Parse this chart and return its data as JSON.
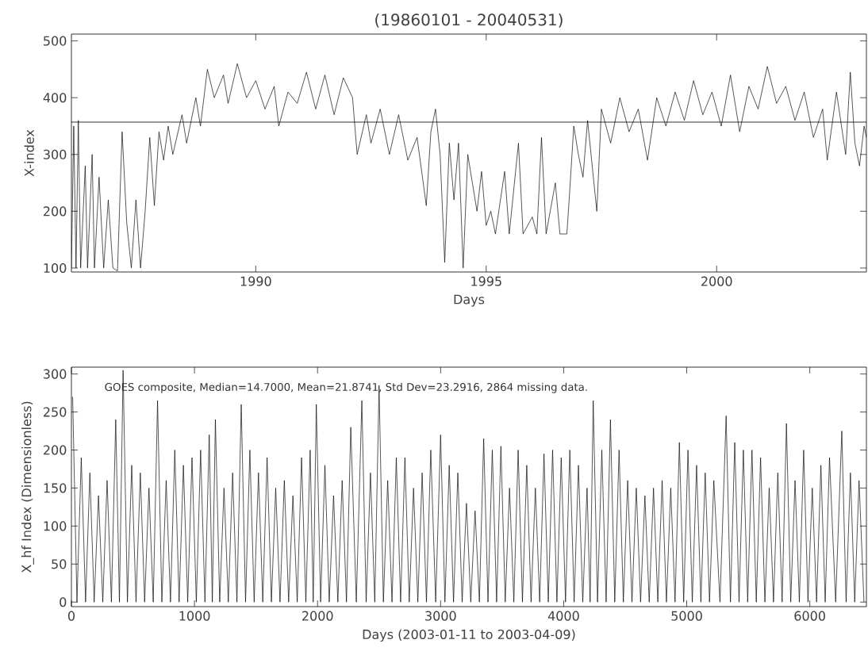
{
  "chart_data": [
    {
      "type": "line",
      "title": "(19860101 - 20040531)",
      "xlabel": "Days",
      "ylabel": "X-index",
      "xlim": [
        1986.0,
        2003.25
      ],
      "ylim": [
        93,
        512
      ],
      "xticks": [
        1990,
        1995,
        2000
      ],
      "yticks": [
        100,
        200,
        300,
        400,
        500
      ],
      "ref_lines": [
        {
          "axis": "y",
          "value": 357,
          "color": "#000000"
        }
      ],
      "series": [
        {
          "color": "#000000",
          "x": [
            1986.0,
            1986.05,
            1986.1,
            1986.15,
            1986.2,
            1986.3,
            1986.35,
            1986.45,
            1986.5,
            1986.6,
            1986.7,
            1986.8,
            1986.9,
            1987.0,
            1987.1,
            1987.2,
            1987.3,
            1987.4,
            1987.5,
            1987.6,
            1987.7,
            1987.8,
            1987.9,
            1988.0,
            1988.1,
            1988.2,
            1988.4,
            1988.5,
            1988.7,
            1988.8,
            1988.95,
            1989.1,
            1989.3,
            1989.4,
            1989.6,
            1989.8,
            1990.0,
            1990.2,
            1990.4,
            1990.5,
            1990.7,
            1990.9,
            1991.1,
            1991.3,
            1991.5,
            1991.7,
            1991.9,
            1992.1,
            1992.2,
            1992.4,
            1992.5,
            1992.7,
            1992.9,
            1993.1,
            1993.3,
            1993.5,
            1993.7,
            1993.8,
            1993.9,
            1994.0,
            1994.1,
            1994.2,
            1994.3,
            1994.4,
            1994.5,
            1994.6,
            1994.8,
            1994.9,
            1995.0,
            1995.1,
            1995.2,
            1995.4,
            1995.5,
            1995.7,
            1995.8,
            1996.0,
            1996.1,
            1996.2,
            1996.3,
            1996.5,
            1996.6,
            1996.75,
            1996.8,
            1996.9,
            1997.0,
            1997.1,
            1997.2,
            1997.4,
            1997.5,
            1997.7,
            1997.9,
            1998.1,
            1998.3,
            1998.5,
            1998.7,
            1998.9,
            1999.1,
            1999.3,
            1999.5,
            1999.7,
            1999.9,
            2000.1,
            2000.3,
            2000.5,
            2000.7,
            2000.9,
            2001.1,
            2001.3,
            2001.5,
            2001.7,
            2001.9,
            2002.1,
            2002.3,
            2002.4,
            2002.6,
            2002.8,
            2002.9,
            2003.0,
            2003.1,
            2003.2,
            2003.25
          ],
          "values": [
            100,
            350,
            100,
            360,
            100,
            280,
            100,
            300,
            100,
            260,
            100,
            220,
            100,
            95,
            340,
            180,
            100,
            220,
            100,
            200,
            330,
            210,
            340,
            290,
            350,
            300,
            370,
            320,
            400,
            350,
            450,
            400,
            440,
            390,
            460,
            400,
            430,
            380,
            420,
            350,
            410,
            390,
            445,
            380,
            440,
            370,
            435,
            400,
            300,
            370,
            320,
            380,
            300,
            370,
            290,
            330,
            210,
            340,
            380,
            300,
            110,
            320,
            220,
            320,
            100,
            300,
            200,
            270,
            175,
            200,
            160,
            270,
            160,
            320,
            160,
            190,
            160,
            330,
            160,
            250,
            160,
            160,
            220,
            350,
            300,
            260,
            360,
            200,
            380,
            320,
            400,
            340,
            380,
            290,
            400,
            350,
            410,
            360,
            430,
            370,
            410,
            350,
            440,
            340,
            420,
            380,
            455,
            390,
            420,
            360,
            410,
            330,
            380,
            290,
            410,
            300,
            445,
            320,
            280,
            350,
            330
          ]
        }
      ]
    },
    {
      "type": "line",
      "xlabel": "Days (2003-01-11 to 2003-04-09)",
      "ylabel": "X_hf Index (Dimensionless)",
      "annotations": [
        "GOES composite, Median=14.7000, Mean=21.8741, Std Dev=23.2916, 2864 missing data."
      ],
      "xlim": [
        0,
        6460
      ],
      "ylim": [
        -6,
        309
      ],
      "xticks": [
        0,
        1000,
        2000,
        3000,
        4000,
        5000,
        6000
      ],
      "yticks": [
        0,
        50,
        100,
        150,
        200,
        250,
        300
      ],
      "series": [
        {
          "color": "#000000",
          "x": [
            10,
            45,
            80,
            115,
            150,
            185,
            220,
            255,
            290,
            325,
            360,
            390,
            420,
            455,
            490,
            525,
            560,
            595,
            630,
            665,
            700,
            735,
            770,
            805,
            840,
            875,
            910,
            945,
            980,
            1015,
            1050,
            1085,
            1120,
            1145,
            1170,
            1205,
            1240,
            1275,
            1310,
            1345,
            1380,
            1415,
            1450,
            1485,
            1520,
            1555,
            1590,
            1625,
            1660,
            1695,
            1730,
            1765,
            1800,
            1835,
            1870,
            1905,
            1940,
            1965,
            1990,
            2025,
            2060,
            2095,
            2130,
            2165,
            2200,
            2235,
            2270,
            2315,
            2360,
            2395,
            2430,
            2465,
            2500,
            2535,
            2570,
            2605,
            2640,
            2675,
            2710,
            2745,
            2780,
            2815,
            2850,
            2885,
            2920,
            2960,
            3000,
            3035,
            3070,
            3105,
            3140,
            3175,
            3210,
            3245,
            3280,
            3315,
            3350,
            3385,
            3420,
            3455,
            3490,
            3525,
            3560,
            3595,
            3630,
            3665,
            3700,
            3735,
            3770,
            3805,
            3840,
            3875,
            3910,
            3945,
            3980,
            4015,
            4050,
            4085,
            4120,
            4155,
            4190,
            4215,
            4240,
            4275,
            4310,
            4345,
            4380,
            4415,
            4450,
            4485,
            4520,
            4555,
            4590,
            4625,
            4660,
            4695,
            4730,
            4765,
            4800,
            4835,
            4870,
            4905,
            4940,
            4975,
            5010,
            5045,
            5080,
            5115,
            5150,
            5185,
            5220,
            5270,
            5320,
            5355,
            5390,
            5425,
            5460,
            5495,
            5530,
            5565,
            5600,
            5635,
            5670,
            5705,
            5740,
            5775,
            5810,
            5845,
            5880,
            5915,
            5950,
            5985,
            6020,
            6055,
            6090,
            6125,
            6160,
            6210,
            6260,
            6295,
            6330,
            6365,
            6400,
            6440
          ],
          "values": [
            270,
            0,
            190,
            0,
            170,
            0,
            140,
            0,
            160,
            0,
            240,
            0,
            305,
            0,
            180,
            0,
            170,
            0,
            150,
            0,
            265,
            0,
            160,
            0,
            200,
            0,
            180,
            0,
            190,
            0,
            200,
            0,
            220,
            0,
            240,
            0,
            150,
            0,
            170,
            0,
            260,
            0,
            200,
            0,
            170,
            0,
            190,
            0,
            150,
            0,
            160,
            0,
            140,
            0,
            190,
            0,
            200,
            0,
            260,
            0,
            180,
            0,
            140,
            0,
            160,
            0,
            230,
            0,
            265,
            0,
            170,
            0,
            285,
            0,
            160,
            0,
            190,
            0,
            190,
            0,
            150,
            0,
            170,
            0,
            200,
            0,
            220,
            0,
            180,
            0,
            170,
            0,
            130,
            0,
            120,
            0,
            215,
            0,
            200,
            0,
            205,
            0,
            150,
            0,
            200,
            0,
            180,
            0,
            150,
            0,
            195,
            0,
            200,
            0,
            190,
            0,
            200,
            0,
            180,
            0,
            150,
            0,
            265,
            0,
            200,
            0,
            240,
            0,
            200,
            0,
            160,
            0,
            150,
            0,
            140,
            0,
            150,
            0,
            160,
            0,
            150,
            0,
            210,
            0,
            200,
            0,
            180,
            0,
            170,
            0,
            160,
            0,
            245,
            0,
            210,
            0,
            200,
            0,
            200,
            0,
            190,
            0,
            150,
            0,
            170,
            0,
            235,
            0,
            160,
            0,
            200,
            0,
            150,
            0,
            180,
            0,
            190,
            0,
            225,
            0,
            170,
            0,
            160,
            0
          ]
        }
      ]
    }
  ]
}
